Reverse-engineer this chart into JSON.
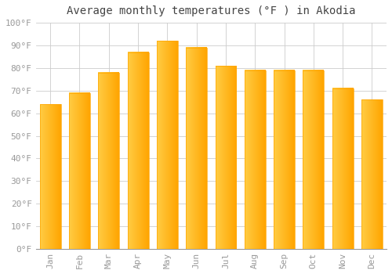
{
  "title": "Average monthly temperatures (°F ) in Akodia",
  "months": [
    "Jan",
    "Feb",
    "Mar",
    "Apr",
    "May",
    "Jun",
    "Jul",
    "Aug",
    "Sep",
    "Oct",
    "Nov",
    "Dec"
  ],
  "values": [
    64,
    69,
    78,
    87,
    92,
    89,
    81,
    79,
    79,
    79,
    71,
    66
  ],
  "bar_color_light": "#FFCC44",
  "bar_color_dark": "#FFA500",
  "ylim": [
    0,
    100
  ],
  "ytick_step": 10,
  "background_color": "#FFFFFF",
  "grid_color": "#CCCCCC",
  "title_fontsize": 10,
  "tick_fontsize": 8,
  "font_family": "monospace",
  "tick_color": "#999999",
  "title_color": "#444444"
}
